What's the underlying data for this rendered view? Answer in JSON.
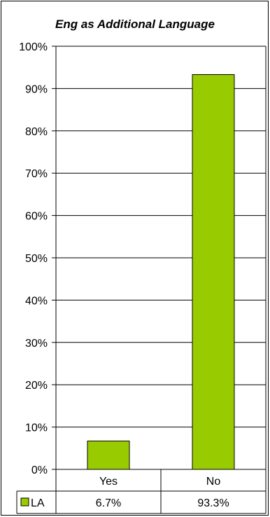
{
  "chart_data": {
    "type": "bar",
    "title": "Eng as Additional Language",
    "categories": [
      "Yes",
      "No"
    ],
    "series": [
      {
        "name": "LA",
        "values": [
          6.7,
          93.3
        ],
        "labels": [
          "6.7%",
          "93.3%"
        ],
        "color": "#99cc00"
      }
    ],
    "ylim": [
      0,
      100
    ],
    "yticks": [
      "0%",
      "10%",
      "20%",
      "30%",
      "40%",
      "50%",
      "60%",
      "70%",
      "80%",
      "90%",
      "100%"
    ],
    "grid": true,
    "legend": "data-table-left"
  }
}
